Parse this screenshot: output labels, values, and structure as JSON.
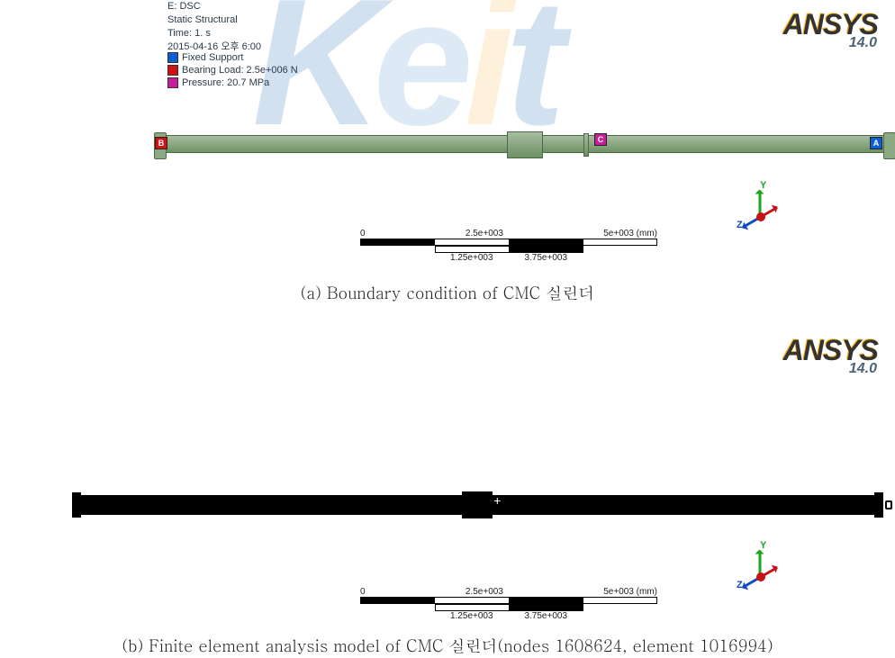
{
  "ansys": {
    "name": "ANSYS",
    "version": "14.0"
  },
  "panel_a": {
    "meta": {
      "sim_id": "E: DSC",
      "analysis_type": "Static Structural",
      "time": "Time: 1. s",
      "timestamp": "2015-04-16 오후 6:00"
    },
    "legend": [
      {
        "label": "A",
        "text": "Fixed Support",
        "color": "#0b5fd6"
      },
      {
        "label": "B",
        "text": "Bearing Load: 2.5e+006 N",
        "color": "#d21212"
      },
      {
        "label": "C",
        "text": "Pressure: 20.7 MPa",
        "color": "#c81e9c"
      }
    ],
    "markers": {
      "A": "A",
      "B": "B",
      "C": "C"
    },
    "shaft_color_top": "#a7bca0",
    "shaft_color_bot": "#6d9064",
    "scalebar": {
      "top_labels": [
        "0",
        "2.5e+003",
        "5e+003 (mm)"
      ],
      "bot_labels": [
        "1.25e+003",
        "3.75e+003"
      ]
    },
    "triad": {
      "y": "Y",
      "z": "Z"
    },
    "caption": "(a) Boundary condition of CMC 실린더"
  },
  "panel_b": {
    "shaft_color": "#000000",
    "scalebar": {
      "top_labels": [
        "0",
        "2.5e+003",
        "5e+003 (mm)"
      ],
      "bot_labels": [
        "1.25e+003",
        "3.75e+003"
      ]
    },
    "triad": {
      "y": "Y",
      "z": "Z"
    },
    "nodes": "1608624",
    "elements": "1016994",
    "caption": "(b) Finite element analysis model of CMC 실린더(nodes 1608624, element 1016994)"
  },
  "watermark": {
    "k": "K",
    "e": "e",
    "i": "i",
    "t": "t"
  }
}
